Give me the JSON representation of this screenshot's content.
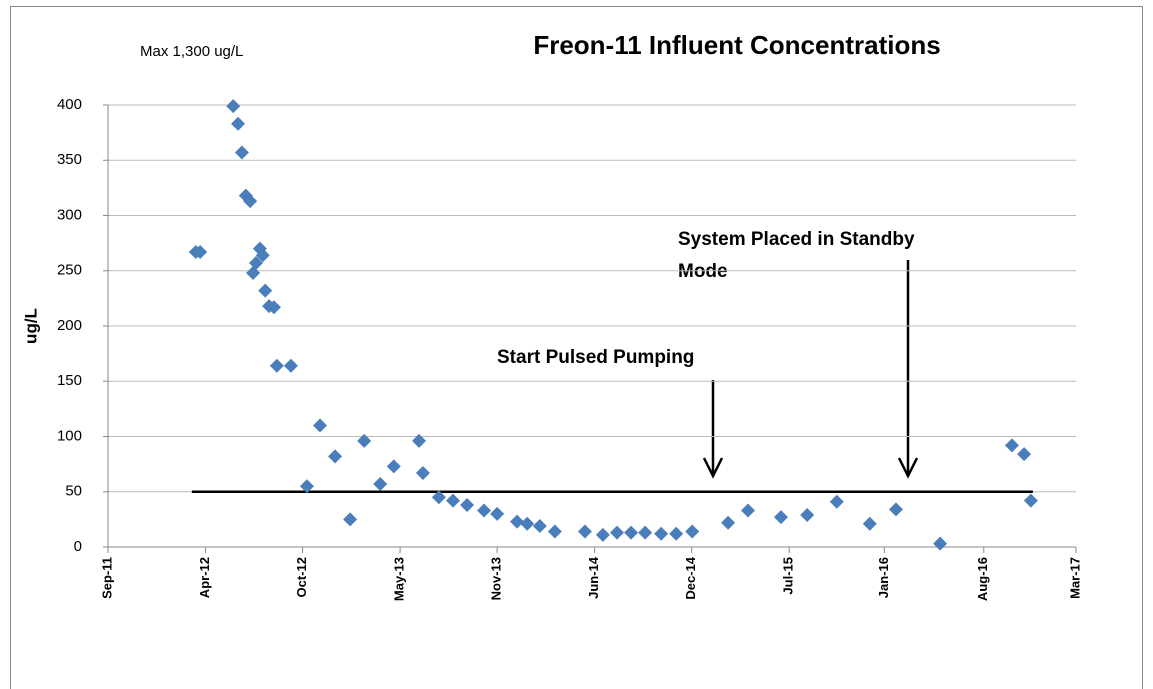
{
  "chart_data": {
    "type": "scatter",
    "title": "Freon-11 Influent Concentrations",
    "y_label": "ug/L",
    "note": "Max 1,300 ug/L",
    "annotations": [
      {
        "lines": [
          "Start Pulsed Pumping"
        ]
      },
      {
        "lines": [
          "System Placed in Standby",
          "Mode"
        ]
      }
    ],
    "threshold": 50,
    "color": "#4a7ebb",
    "grid": true,
    "xlim": [
      40800,
      42795
    ],
    "xticks": [
      {
        "value": 40800,
        "label": "Sep-11"
      },
      {
        "value": 41001,
        "label": "Apr-12"
      },
      {
        "value": 41201,
        "label": "Oct-12"
      },
      {
        "value": 41402,
        "label": "May-13"
      },
      {
        "value": 41602,
        "label": "Nov-13"
      },
      {
        "value": 41803,
        "label": "Jun-14"
      },
      {
        "value": 42003,
        "label": "Dec-14"
      },
      {
        "value": 42204,
        "label": "Jul-15"
      },
      {
        "value": 42400,
        "label": "Jan-16"
      },
      {
        "value": 42605,
        "label": "Aug-16"
      },
      {
        "value": 42795,
        "label": "Mar-17"
      }
    ],
    "ylim": [
      0,
      400
    ],
    "yticks": [
      0,
      50,
      100,
      150,
      200,
      250,
      300,
      350,
      400
    ],
    "x": [
      40981,
      40990,
      41058,
      41068,
      41076,
      41084,
      41093,
      41113,
      41119,
      41105,
      41099,
      41124,
      41132,
      41142,
      41148,
      41177,
      41210,
      41237,
      41268,
      41299,
      41328,
      41361,
      41389,
      41441,
      41449,
      41482,
      41511,
      41540,
      41575,
      41602,
      41643,
      41664,
      41690,
      41721,
      41783,
      41820,
      41849,
      41878,
      41907,
      41940,
      41971,
      42004,
      42078,
      42119,
      42187,
      42241,
      42302,
      42370,
      42424,
      42515,
      42663,
      42688,
      42702
    ],
    "values": [
      267,
      267,
      399,
      383,
      357,
      318,
      313,
      270,
      264,
      257,
      248,
      232,
      218,
      217,
      164,
      164,
      55,
      110,
      82,
      25,
      96,
      57,
      73,
      96,
      67,
      45,
      42,
      38,
      33,
      30,
      23,
      21,
      19,
      14,
      14,
      11,
      13,
      13,
      13,
      12,
      12,
      14,
      22,
      33,
      27,
      29,
      41,
      21,
      34,
      3,
      92,
      84,
      42
    ]
  }
}
